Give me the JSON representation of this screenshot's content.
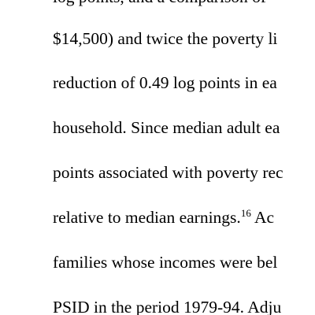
{
  "document": {
    "lines": [
      "log points, and a comparison of",
      "$14,500) and twice the poverty li",
      "reduction of 0.49 log points in ea",
      "household. Since median adult ea",
      "points associated with poverty rec",
      "relative to median earnings.",
      "families whose incomes were bel",
      "PSID in the period 1979-94. Adju"
    ],
    "footnote_marker": "16",
    "after_footnote": " Ac"
  }
}
